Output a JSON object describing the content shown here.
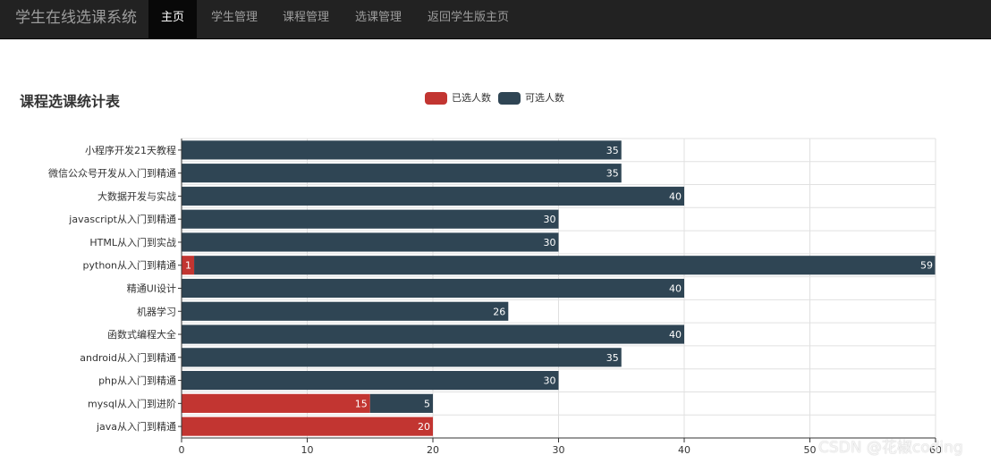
{
  "nav": {
    "brand": "学生在线选课系统",
    "items": [
      {
        "label": "主页",
        "active": true
      },
      {
        "label": "学生管理",
        "active": false
      },
      {
        "label": "课程管理",
        "active": false
      },
      {
        "label": "选课管理",
        "active": false
      },
      {
        "label": "返回学生版主页",
        "active": false
      }
    ]
  },
  "colors": {
    "selected": "#c23531",
    "available": "#2f4554",
    "navbar": "#222222"
  },
  "chart_data": {
    "type": "bar",
    "orientation": "horizontal",
    "stacked": true,
    "title": "课程选课统计表",
    "categories": [
      "小程序开发21天教程",
      "微信公众号开发从入门到精通",
      "大数据开发与实战",
      "javascript从入门到精通",
      "HTML从入门到实战",
      "python从入门到精通",
      "精通UI设计",
      "机器学习",
      "函数式编程大全",
      "android从入门到精通",
      "php从入门到精通",
      "mysql从入门到进阶",
      "java从入门到精通"
    ],
    "series": [
      {
        "name": "已选人数",
        "values": [
          0,
          0,
          0,
          0,
          0,
          1,
          0,
          0,
          0,
          0,
          0,
          15,
          20
        ]
      },
      {
        "name": "可选人数",
        "values": [
          35,
          35,
          40,
          30,
          30,
          59,
          40,
          26,
          40,
          35,
          30,
          5,
          0
        ]
      }
    ],
    "xlim": [
      0,
      60
    ],
    "xticks": [
      0,
      10,
      20,
      30,
      40,
      50,
      60
    ],
    "grid": true,
    "legend_position": "top-center"
  },
  "watermark": "CSDN @花椒coding"
}
